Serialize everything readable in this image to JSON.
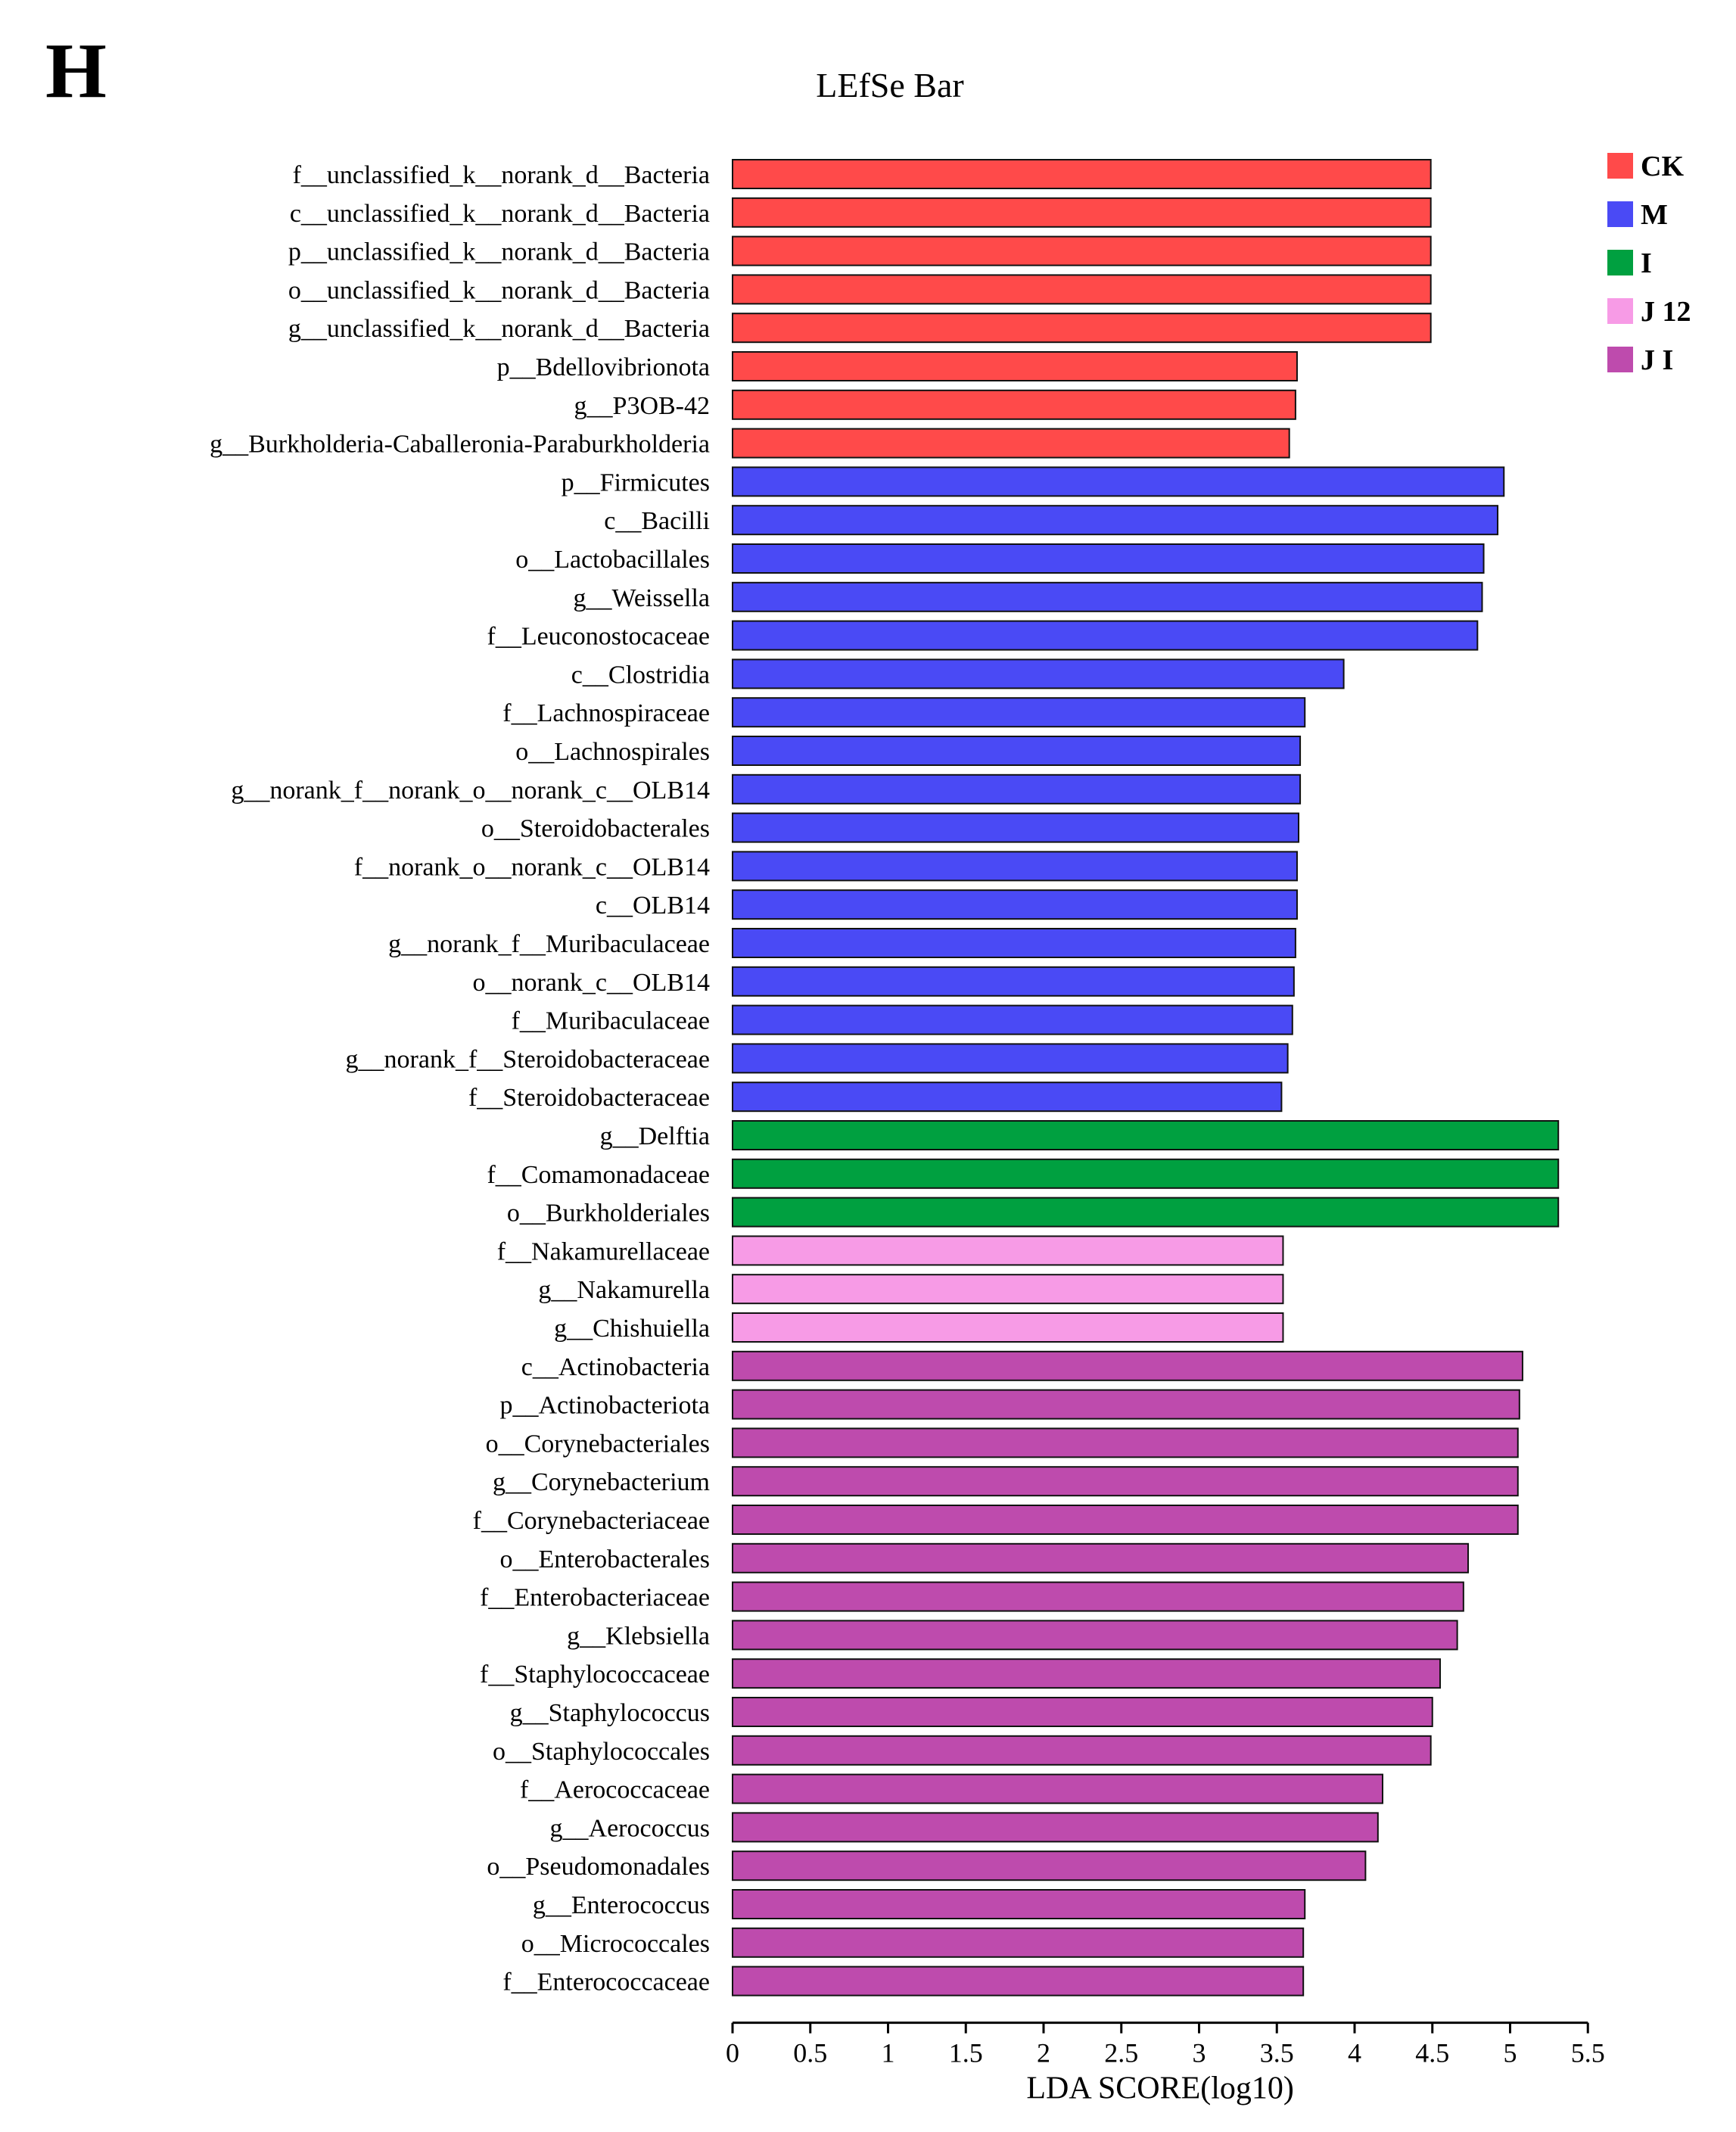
{
  "panel_label": "H",
  "chart_data": {
    "type": "bar",
    "orientation": "horizontal",
    "title": "LEfSe Bar",
    "xlabel": "LDA SCORE(log10)",
    "ylabel": "",
    "xlim": [
      0,
      5.5
    ],
    "xticks": [
      "0",
      "0.5",
      "1",
      "1.5",
      "2",
      "2.5",
      "3",
      "3.5",
      "4",
      "4.5",
      "5",
      "5.5"
    ],
    "grid": false,
    "legend_position": "top-right",
    "groups": [
      {
        "name": "CK",
        "color": "#FF4A4A"
      },
      {
        "name": "M",
        "color": "#4A4AF5"
      },
      {
        "name": "I",
        "color": "#00A040"
      },
      {
        "name": "J 12",
        "color": "#F79BE6"
      },
      {
        "name": "J I",
        "color": "#BE4BAD"
      }
    ],
    "bars": [
      {
        "label": "f__unclassified_k__norank_d__Bacteria",
        "value": 4.49,
        "group": "CK"
      },
      {
        "label": "c__unclassified_k__norank_d__Bacteria",
        "value": 4.49,
        "group": "CK"
      },
      {
        "label": "p__unclassified_k__norank_d__Bacteria",
        "value": 4.49,
        "group": "CK"
      },
      {
        "label": "o__unclassified_k__norank_d__Bacteria",
        "value": 4.49,
        "group": "CK"
      },
      {
        "label": "g__unclassified_k__norank_d__Bacteria",
        "value": 4.49,
        "group": "CK"
      },
      {
        "label": "p__Bdellovibrionota",
        "value": 3.63,
        "group": "CK"
      },
      {
        "label": "g__P3OB-42",
        "value": 3.62,
        "group": "CK"
      },
      {
        "label": "g__Burkholderia-Caballeronia-Paraburkholderia",
        "value": 3.58,
        "group": "CK"
      },
      {
        "label": "p__Firmicutes",
        "value": 4.96,
        "group": "M"
      },
      {
        "label": "c__Bacilli",
        "value": 4.92,
        "group": "M"
      },
      {
        "label": "o__Lactobacillales",
        "value": 4.83,
        "group": "M"
      },
      {
        "label": "g__Weissella",
        "value": 4.82,
        "group": "M"
      },
      {
        "label": "f__Leuconostocaceae",
        "value": 4.79,
        "group": "M"
      },
      {
        "label": "c__Clostridia",
        "value": 3.93,
        "group": "M"
      },
      {
        "label": "f__Lachnospiraceae",
        "value": 3.68,
        "group": "M"
      },
      {
        "label": "o__Lachnospirales",
        "value": 3.65,
        "group": "M"
      },
      {
        "label": "g__norank_f__norank_o__norank_c__OLB14",
        "value": 3.65,
        "group": "M"
      },
      {
        "label": "o__Steroidobacterales",
        "value": 3.64,
        "group": "M"
      },
      {
        "label": "f__norank_o__norank_c__OLB14",
        "value": 3.63,
        "group": "M"
      },
      {
        "label": "c__OLB14",
        "value": 3.63,
        "group": "M"
      },
      {
        "label": "g__norank_f__Muribaculaceae",
        "value": 3.62,
        "group": "M"
      },
      {
        "label": "o__norank_c__OLB14",
        "value": 3.61,
        "group": "M"
      },
      {
        "label": "f__Muribaculaceae",
        "value": 3.6,
        "group": "M"
      },
      {
        "label": "g__norank_f__Steroidobacteraceae",
        "value": 3.57,
        "group": "M"
      },
      {
        "label": "f__Steroidobacteraceae",
        "value": 3.53,
        "group": "M"
      },
      {
        "label": "g__Delftia",
        "value": 5.31,
        "group": "I"
      },
      {
        "label": "f__Comamonadaceae",
        "value": 5.31,
        "group": "I"
      },
      {
        "label": "o__Burkholderiales",
        "value": 5.31,
        "group": "I"
      },
      {
        "label": "f__Nakamurellaceae",
        "value": 3.54,
        "group": "J 12"
      },
      {
        "label": "g__Nakamurella",
        "value": 3.54,
        "group": "J 12"
      },
      {
        "label": "g__Chishuiella",
        "value": 3.54,
        "group": "J 12"
      },
      {
        "label": "c__Actinobacteria",
        "value": 5.08,
        "group": "J I"
      },
      {
        "label": "p__Actinobacteriota",
        "value": 5.06,
        "group": "J I"
      },
      {
        "label": "o__Corynebacteriales",
        "value": 5.05,
        "group": "J I"
      },
      {
        "label": "g__Corynebacterium",
        "value": 5.05,
        "group": "J I"
      },
      {
        "label": "f__Corynebacteriaceae",
        "value": 5.05,
        "group": "J I"
      },
      {
        "label": "o__Enterobacterales",
        "value": 4.73,
        "group": "J I"
      },
      {
        "label": "f__Enterobacteriaceae",
        "value": 4.7,
        "group": "J I"
      },
      {
        "label": "g__Klebsiella",
        "value": 4.66,
        "group": "J I"
      },
      {
        "label": "f__Staphylococcaceae",
        "value": 4.55,
        "group": "J I"
      },
      {
        "label": "g__Staphylococcus",
        "value": 4.5,
        "group": "J I"
      },
      {
        "label": "o__Staphylococcales",
        "value": 4.49,
        "group": "J I"
      },
      {
        "label": "f__Aerococcaceae",
        "value": 4.18,
        "group": "J I"
      },
      {
        "label": "g__Aerococcus",
        "value": 4.15,
        "group": "J I"
      },
      {
        "label": "o__Pseudomonadales",
        "value": 4.07,
        "group": "J I"
      },
      {
        "label": "g__Enterococcus",
        "value": 3.68,
        "group": "J I"
      },
      {
        "label": "o__Micrococcales",
        "value": 3.67,
        "group": "J I"
      },
      {
        "label": "f__Enterococcaceae",
        "value": 3.67,
        "group": "J I"
      }
    ]
  }
}
